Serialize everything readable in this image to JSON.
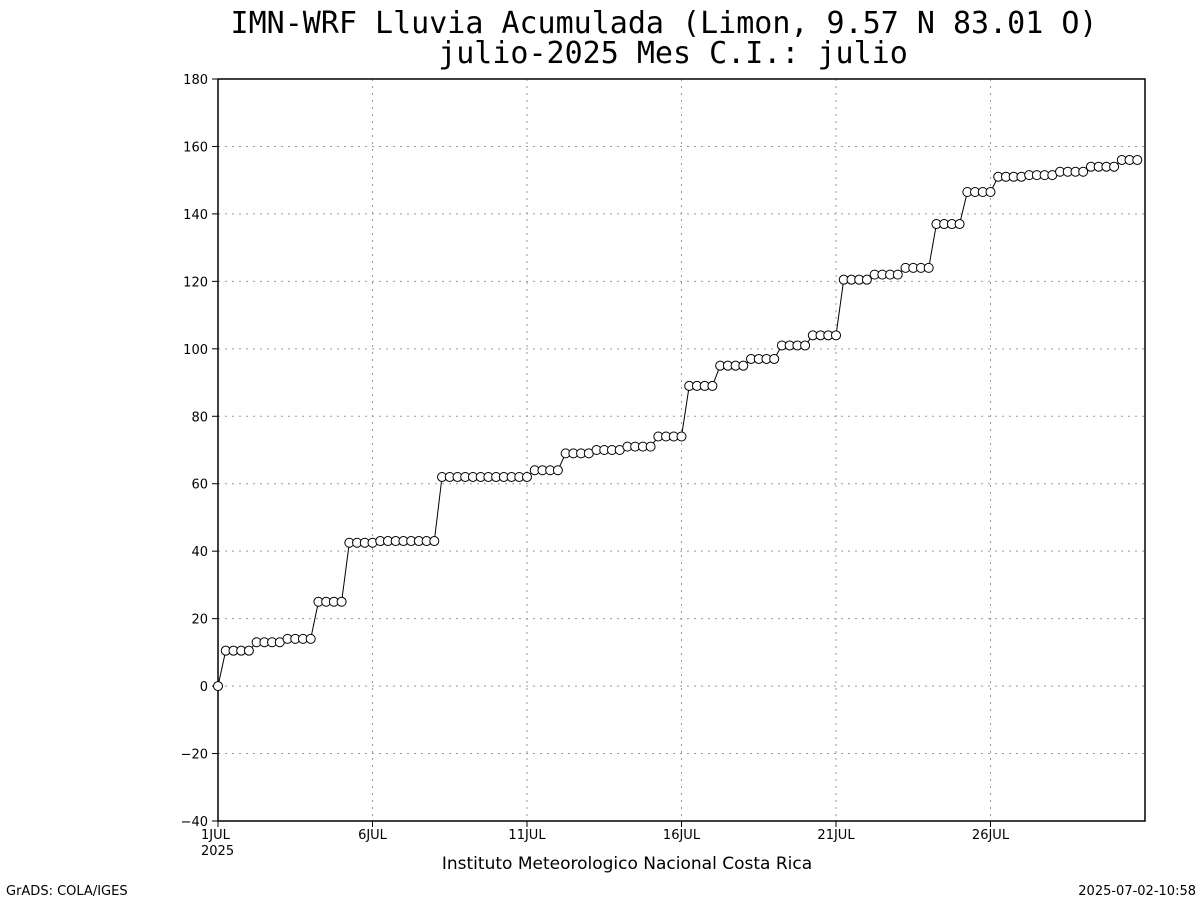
{
  "chart_data": {
    "type": "line",
    "title_line1": "IMN-WRF  Lluvia Acumulada (Limon, 9.57  N 83.01  O)",
    "title_line2": "julio-2025 Mes C.I.: julio",
    "xlabel": "Instituto Meteorologico Nacional Costa Rica",
    "ylabel": "",
    "ylim": [
      -40,
      180
    ],
    "yticks": [
      -40,
      -20,
      0,
      20,
      40,
      60,
      80,
      100,
      120,
      140,
      160,
      180
    ],
    "xlim": [
      1,
      31
    ],
    "xticks": [
      {
        "x": 1,
        "label": "1JUL",
        "sublabel": "2025"
      },
      {
        "x": 6,
        "label": "6JUL",
        "sublabel": ""
      },
      {
        "x": 11,
        "label": "11JUL",
        "sublabel": ""
      },
      {
        "x": 16,
        "label": "16JUL",
        "sublabel": ""
      },
      {
        "x": 21,
        "label": "21JUL",
        "sublabel": ""
      },
      {
        "x": 26,
        "label": "26JUL",
        "sublabel": ""
      }
    ],
    "grid": true,
    "x_step_days": 0.25,
    "values": [
      0,
      10.5,
      10.5,
      10.5,
      10.5,
      13,
      13,
      13,
      13,
      14,
      14,
      14,
      14,
      25,
      25,
      25,
      25,
      42.5,
      42.5,
      42.5,
      42.5,
      43,
      43,
      43,
      43,
      43,
      43,
      43,
      43,
      62,
      62,
      62,
      62,
      62,
      62,
      62,
      62,
      62,
      62,
      62,
      62,
      64,
      64,
      64,
      64,
      69,
      69,
      69,
      69,
      70,
      70,
      70,
      70,
      71,
      71,
      71,
      71,
      74,
      74,
      74,
      74,
      89,
      89,
      89,
      89,
      95,
      95,
      95,
      95,
      97,
      97,
      97,
      97,
      101,
      101,
      101,
      101,
      104,
      104,
      104,
      104,
      120.5,
      120.5,
      120.5,
      120.5,
      122,
      122,
      122,
      122,
      124,
      124,
      124,
      124,
      137,
      137,
      137,
      137,
      146.5,
      146.5,
      146.5,
      146.5,
      151,
      151,
      151,
      151,
      151.5,
      151.5,
      151.5,
      151.5,
      152.5,
      152.5,
      152.5,
      152.5,
      154,
      154,
      154,
      154,
      156,
      156,
      156
    ]
  },
  "footer": {
    "left": "GrADS: COLA/IGES",
    "right": "2025-07-02-10:58"
  }
}
